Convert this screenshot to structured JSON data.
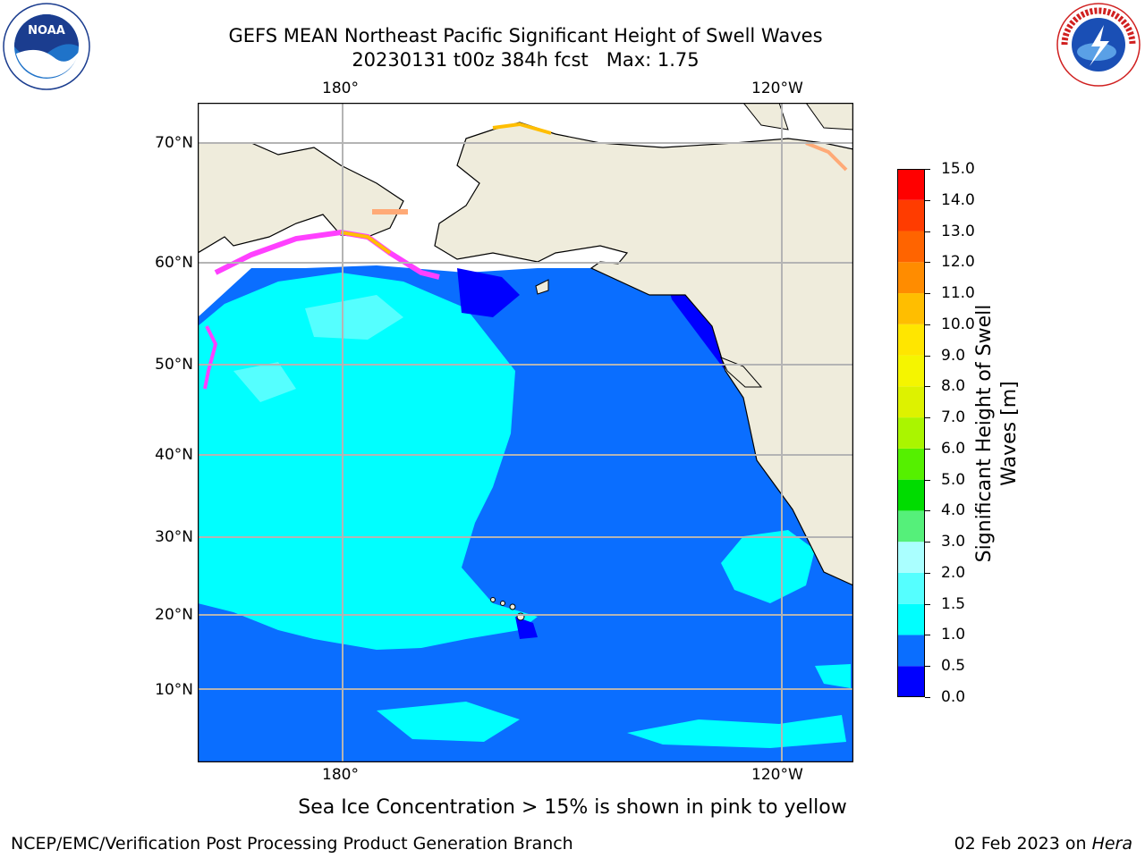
{
  "header": {
    "title_line1": "GEFS MEAN Northeast Pacific Significant Height of Swell Waves",
    "title_line2": "20230131 t00z 384h fcst   Max: 1.75"
  },
  "logos": {
    "left": {
      "icon": "noaa-logo-icon",
      "text": "NOAA"
    },
    "right": {
      "icon": "nws-logo-icon",
      "ring_text": "NATIONAL WEATHER SERVICE"
    }
  },
  "map": {
    "lon_labels_top": [
      "180°",
      "120°W"
    ],
    "lon_labels_bottom": [
      "180°",
      "120°W"
    ],
    "lat_labels": [
      "70°N",
      "60°N",
      "50°N",
      "40°N",
      "30°N",
      "20°N",
      "10°N"
    ],
    "land_color": "#efecdc",
    "grid_color": "#b4b4b4"
  },
  "colorbar": {
    "label": "Significant Height of Swell Waves [m]",
    "ticks": [
      "15.0",
      "14.0",
      "13.0",
      "12.0",
      "11.0",
      "10.0",
      "9.0",
      "8.0",
      "7.0",
      "6.0",
      "5.0",
      "4.0",
      "3.0",
      "2.0",
      "1.5",
      "1.0",
      "0.5",
      "0.0"
    ],
    "colors": [
      "#0000ff",
      "#0a6eff",
      "#00ffff",
      "#55ffff",
      "#aaffff",
      "#55f07a",
      "#00dc00",
      "#55f000",
      "#aaf500",
      "#ddf200",
      "#f5f500",
      "#ffe600",
      "#ffbe00",
      "#ff8c00",
      "#ff6400",
      "#ff3c00",
      "#ff0000"
    ]
  },
  "chart_data": {
    "type": "heatmap",
    "title": "GEFS MEAN Northeast Pacific Significant Height of Swell Waves",
    "subtitle": "20230131 t00z 384h fcst   Max: 1.75",
    "variable": "Significant Height of Swell Waves [m]",
    "max_value": 1.75,
    "colorbar_levels": [
      0.0,
      0.5,
      1.0,
      1.5,
      2.0,
      3.0,
      4.0,
      5.0,
      6.0,
      7.0,
      8.0,
      9.0,
      10.0,
      11.0,
      12.0,
      13.0,
      14.0,
      15.0
    ],
    "lat_range": [
      "0°N",
      "75°N"
    ],
    "gridlines": true
  },
  "notes": {
    "sea_ice": "Sea Ice Concentration > 15% is shown in pink to yellow"
  },
  "footer": {
    "left": "NCEP/EMC/Verification Post Processing Product Generation Branch",
    "right_date": "02 Feb 2023 on ",
    "right_machine": "Hera"
  }
}
